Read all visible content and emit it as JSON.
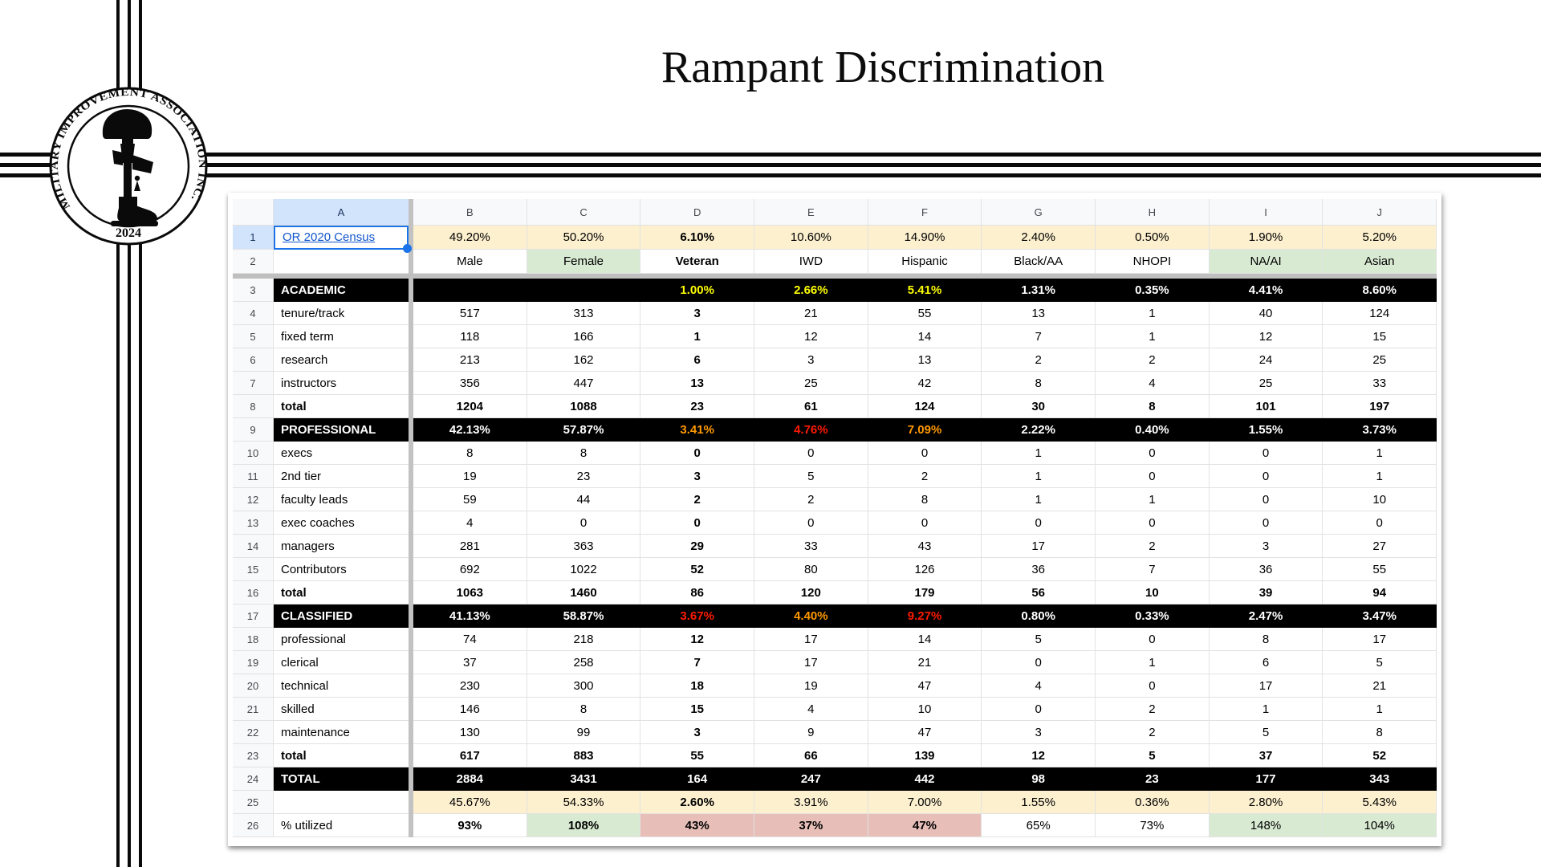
{
  "title": "Rampant Discrimination",
  "logo": {
    "org_name": "MILITARY IMPROVEMENT ASSOCIATION INC.",
    "year": "2024",
    "emblem": "battlefield-cross-icon"
  },
  "colors": {
    "accent_selection": "#1a73e8",
    "link": "#1155cc",
    "highlight_cream": "#fdf0cf",
    "highlight_green": "#d9ead3",
    "highlight_pink": "#e7bfb8",
    "warn_yellow": "#fdfd02",
    "warn_orange": "#ff9900",
    "warn_red": "#fe1a00",
    "section_bg": "#000000"
  },
  "sheet": {
    "column_letters": [
      "A",
      "B",
      "C",
      "D",
      "E",
      "F",
      "G",
      "H",
      "I",
      "J"
    ],
    "selected_cell": "A1",
    "rows": [
      {
        "num": "1",
        "label": "OR 2020 Census",
        "link": true,
        "type": "census",
        "values": [
          "49.20%",
          "50.20%",
          "6.10%",
          "10.60%",
          "14.90%",
          "2.40%",
          "0.50%",
          "1.90%",
          "5.20%"
        ],
        "cls": [
          "c",
          "c",
          "c",
          "c",
          "c",
          "c",
          "c",
          "c",
          "c"
        ]
      },
      {
        "num": "2",
        "label": "",
        "type": "labels",
        "values": [
          "Male",
          "Female",
          "Veteran",
          "IWD",
          "Hispanic",
          "Black/AA",
          "NHOPI",
          "NA/AI",
          "Asian"
        ],
        "cls": [
          "",
          "g",
          "",
          "",
          "",
          "",
          "",
          "g",
          "g"
        ]
      },
      {
        "num": "3",
        "label": "ACADEMIC",
        "type": "section",
        "values": [
          "",
          "",
          "1.00%",
          "2.66%",
          "5.41%",
          "1.31%",
          "0.35%",
          "4.41%",
          "8.60%"
        ],
        "cls": [
          "",
          "",
          "y",
          "y",
          "y",
          "",
          "",
          "",
          ""
        ]
      },
      {
        "num": "4",
        "label": "tenure/track",
        "type": "data",
        "values": [
          "517",
          "313",
          "3",
          "21",
          "55",
          "13",
          "1",
          "40",
          "124"
        ]
      },
      {
        "num": "5",
        "label": "fixed term",
        "type": "data",
        "values": [
          "118",
          "166",
          "1",
          "12",
          "14",
          "7",
          "1",
          "12",
          "15"
        ]
      },
      {
        "num": "6",
        "label": "research",
        "type": "data",
        "values": [
          "213",
          "162",
          "6",
          "3",
          "13",
          "2",
          "2",
          "24",
          "25"
        ]
      },
      {
        "num": "7",
        "label": "instructors",
        "type": "data",
        "values": [
          "356",
          "447",
          "13",
          "25",
          "42",
          "8",
          "4",
          "25",
          "33"
        ]
      },
      {
        "num": "8",
        "label": "total",
        "type": "total",
        "values": [
          "1204",
          "1088",
          "23",
          "61",
          "124",
          "30",
          "8",
          "101",
          "197"
        ]
      },
      {
        "num": "9",
        "label": "PROFESSIONAL",
        "type": "section",
        "values": [
          "42.13%",
          "57.87%",
          "3.41%",
          "4.76%",
          "7.09%",
          "2.22%",
          "0.40%",
          "1.55%",
          "3.73%"
        ],
        "cls": [
          "",
          "",
          "o",
          "r",
          "o",
          "",
          "",
          "",
          ""
        ]
      },
      {
        "num": "10",
        "label": "execs",
        "type": "data",
        "values": [
          "8",
          "8",
          "0",
          "0",
          "0",
          "1",
          "0",
          "0",
          "1"
        ]
      },
      {
        "num": "11",
        "label": "2nd tier",
        "type": "data",
        "values": [
          "19",
          "23",
          "3",
          "5",
          "2",
          "1",
          "0",
          "0",
          "1"
        ]
      },
      {
        "num": "12",
        "label": "faculty leads",
        "type": "data",
        "values": [
          "59",
          "44",
          "2",
          "2",
          "8",
          "1",
          "1",
          "0",
          "10"
        ]
      },
      {
        "num": "13",
        "label": "exec coaches",
        "type": "data",
        "values": [
          "4",
          "0",
          "0",
          "0",
          "0",
          "0",
          "0",
          "0",
          "0"
        ]
      },
      {
        "num": "14",
        "label": "managers",
        "type": "data",
        "values": [
          "281",
          "363",
          "29",
          "33",
          "43",
          "17",
          "2",
          "3",
          "27"
        ]
      },
      {
        "num": "15",
        "label": "Contributors",
        "type": "data",
        "values": [
          "692",
          "1022",
          "52",
          "80",
          "126",
          "36",
          "7",
          "36",
          "55"
        ]
      },
      {
        "num": "16",
        "label": "total",
        "type": "total",
        "values": [
          "1063",
          "1460",
          "86",
          "120",
          "179",
          "56",
          "10",
          "39",
          "94"
        ]
      },
      {
        "num": "17",
        "label": "CLASSIFIED",
        "type": "section",
        "values": [
          "41.13%",
          "58.87%",
          "3.67%",
          "4.40%",
          "9.27%",
          "0.80%",
          "0.33%",
          "2.47%",
          "3.47%"
        ],
        "cls": [
          "",
          "",
          "r",
          "o",
          "r",
          "",
          "",
          "",
          ""
        ]
      },
      {
        "num": "18",
        "label": "professional",
        "type": "data",
        "values": [
          "74",
          "218",
          "12",
          "17",
          "14",
          "5",
          "0",
          "8",
          "17"
        ]
      },
      {
        "num": "19",
        "label": "clerical",
        "type": "data",
        "values": [
          "37",
          "258",
          "7",
          "17",
          "21",
          "0",
          "1",
          "6",
          "5"
        ]
      },
      {
        "num": "20",
        "label": "technical",
        "type": "data",
        "values": [
          "230",
          "300",
          "18",
          "19",
          "47",
          "4",
          "0",
          "17",
          "21"
        ]
      },
      {
        "num": "21",
        "label": "skilled",
        "type": "data",
        "values": [
          "146",
          "8",
          "15",
          "4",
          "10",
          "0",
          "2",
          "1",
          "1"
        ]
      },
      {
        "num": "22",
        "label": "maintenance",
        "type": "data",
        "values": [
          "130",
          "99",
          "3",
          "9",
          "47",
          "3",
          "2",
          "5",
          "8"
        ]
      },
      {
        "num": "23",
        "label": "total",
        "type": "total",
        "values": [
          "617",
          "883",
          "55",
          "66",
          "139",
          "12",
          "5",
          "37",
          "52"
        ]
      },
      {
        "num": "24",
        "label": "TOTAL",
        "type": "section",
        "values": [
          "2884",
          "3431",
          "164",
          "247",
          "442",
          "98",
          "23",
          "177",
          "343"
        ]
      },
      {
        "num": "25",
        "label": "",
        "type": "data",
        "values": [
          "45.67%",
          "54.33%",
          "2.60%",
          "3.91%",
          "7.00%",
          "1.55%",
          "0.36%",
          "2.80%",
          "5.43%"
        ],
        "cls": [
          "c",
          "c",
          "c",
          "c",
          "c",
          "c",
          "c",
          "c",
          "c"
        ]
      },
      {
        "num": "26",
        "label": "% utilized",
        "type": "data",
        "values": [
          "93%",
          "108%",
          "43%",
          "37%",
          "47%",
          "65%",
          "73%",
          "148%",
          "104%"
        ],
        "cls": [
          "b",
          "g b",
          "p",
          "p b",
          "p b",
          "",
          "",
          "g",
          "g"
        ]
      }
    ]
  }
}
